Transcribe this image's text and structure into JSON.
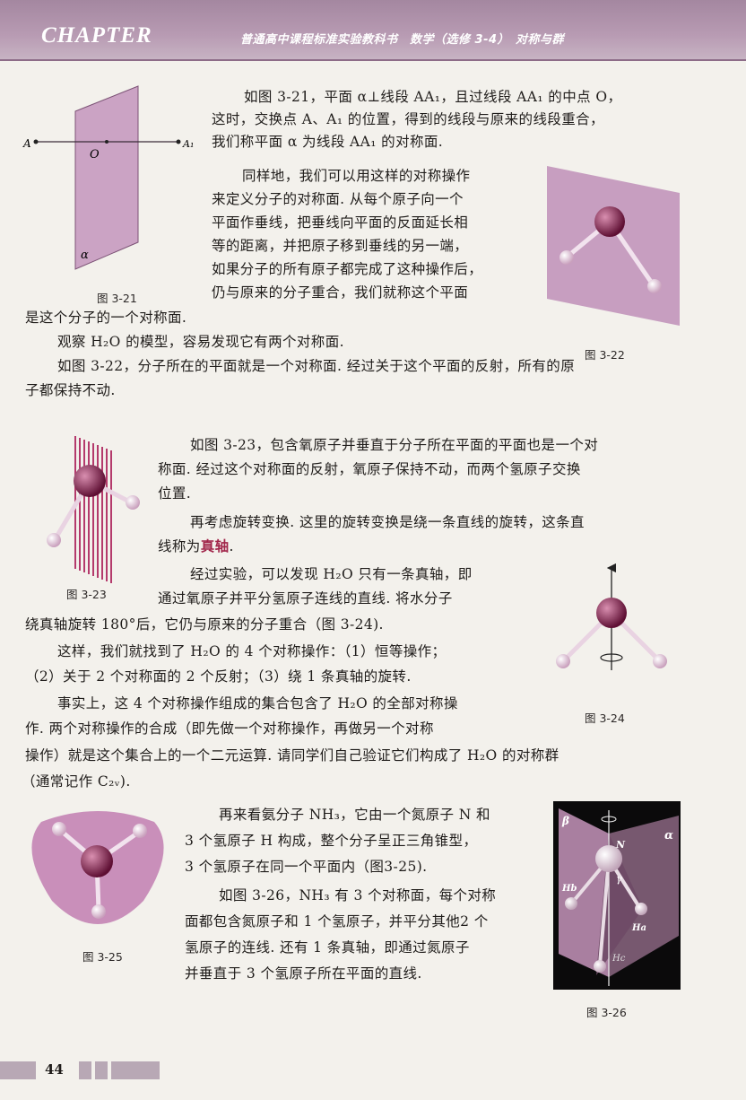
{
  "header": {
    "chapter": "CHAPTER",
    "series": "普通高中课程标准实验教科书　数学（选修 3-4）　对称与群"
  },
  "fig21": {
    "point_a": "A",
    "point_a1": "A₁",
    "point_o": "O",
    "plane": "α",
    "caption": "图 3-21"
  },
  "fig22": {
    "caption": "图 3-22"
  },
  "fig23": {
    "caption": "图 3-23"
  },
  "fig24": {
    "caption": "图 3-24"
  },
  "fig25": {
    "caption": "图 3-25"
  },
  "fig26": {
    "caption": "图 3-26",
    "beta": "β",
    "alpha": "α",
    "n": "N",
    "gamma": "γ",
    "hb": "Hb",
    "ha": "Ha",
    "hc": "Hc"
  },
  "text": {
    "l1": "如图 3-21，平面 α⊥线段 AA₁，且过线段 AA₁ 的中点 O，",
    "l2": "这时，交换点 A、A₁ 的位置，得到的线段与原来的线段重合，",
    "l3": "我们称平面 α 为线段 AA₁ 的对称面.",
    "l4": "同样地，我们可以用这样的对称操作",
    "l5": "来定义分子的对称面. 从每个原子向一个",
    "l6": "平面作垂线，把垂线向平面的反面延长相",
    "l7": "等的距离，并把原子移到垂线的另一端，",
    "l8": "如果分子的所有原子都完成了这种操作后，",
    "l9": "仍与原来的分子重合，我们就称这个平面",
    "l10": "是这个分子的一个对称面.",
    "l11": "观察 H₂O 的模型，容易发现它有两个对称面.",
    "l12": "如图 3-22，分子所在的平面就是一个对称面. 经过关于这个平面的反射，所有的原",
    "l13": "子都保持不动.",
    "l14": "如图 3-23，包含氧原子并垂直于分子所在平面的平面也是一个对",
    "l15": "称面. 经过这个对称面的反射，氧原子保持不动，而两个氢原子交换",
    "l16": "位置.",
    "l17": "再考虑旋转变换. 这里的旋转变换是绕一条直线的旋转，这条直",
    "l18a": "线称为",
    "l18b": "真轴",
    "l18c": ".",
    "l19": "经过实验，可以发现 H₂O 只有一条真轴，即",
    "l20": "通过氧原子并平分氢原子连线的直线. 将水分子",
    "l21": "绕真轴旋转 180°后，它仍与原来的分子重合（图 3-24).",
    "l22": "这样，我们就找到了 H₂O 的 4 个对称操作：（1）恒等操作；",
    "l23": "（2）关于 2 个对称面的 2 个反射；（3）绕 1 条真轴的旋转.",
    "l24": "事实上，这 4 个对称操作组成的集合包含了 H₂O 的全部对称操",
    "l25": "作. 两个对称操作的合成（即先做一个对称操作，再做另一个对称",
    "l26": "操作）就是这个集合上的一个二元运算. 请同学们自己验证它们构成了 H₂O 的对称群",
    "l27": "（通常记作 C₂ᵥ).",
    "l28": "再来看氨分子 NH₃，它由一个氮原子 N 和",
    "l29": "3 个氢原子 H 构成，整个分子呈正三角锥型，",
    "l30": "3 个氢原子在同一个平面内（图3-25).",
    "l31": "如图 3-26，NH₃ 有 3 个对称面，每个对称",
    "l32": "面都包含氮原子和 1 个氢原子，并平分其他2 个",
    "l33": "氢原子的连线. 还有 1 条真轴，即通过氮原子",
    "l34": "并垂直于 3 个氢原子所在平面的直线."
  },
  "page_number": "44",
  "colors": {
    "header": "#a487a0",
    "highlight": "#a1254a",
    "plane": "#c79ec0"
  }
}
